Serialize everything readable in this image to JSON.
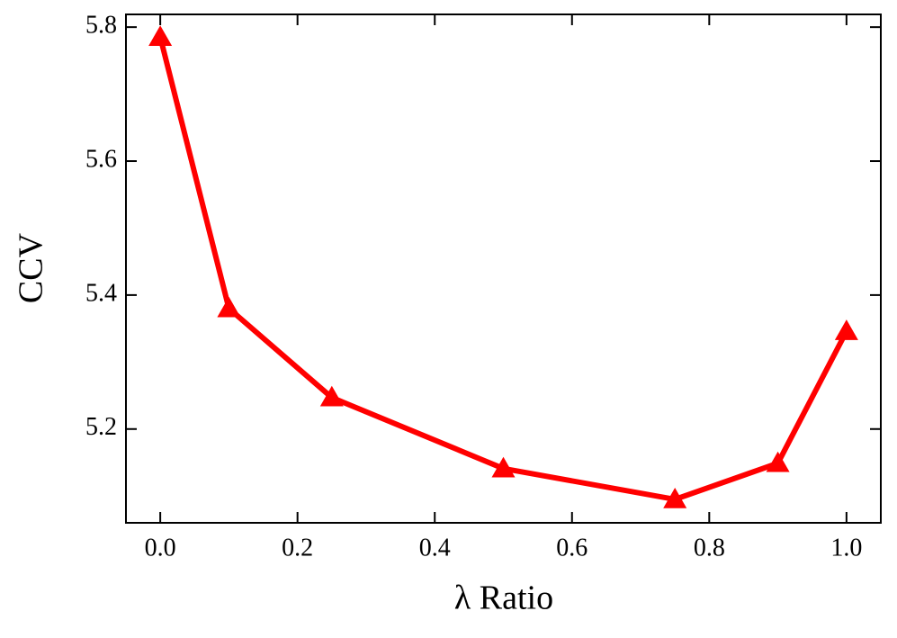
{
  "chart_data": {
    "type": "line",
    "x_label": "λ Ratio",
    "y_label": "CCV",
    "x": [
      0,
      0.1,
      0.25,
      0.5,
      0.75,
      0.9,
      1.0
    ],
    "series": [
      {
        "color": "#ff0000",
        "marker": "triangle",
        "values": [
          5.785,
          5.38,
          5.247,
          5.141,
          5.095,
          5.149,
          5.346
        ]
      }
    ],
    "xlim": [
      -0.05,
      1.05
    ],
    "xticks": [
      {
        "value": 0,
        "label": "0.0"
      },
      0.2,
      0.4,
      0.6,
      0.8,
      {
        "value": 1,
        "label": "1.0"
      }
    ],
    "ylim": [
      5.06,
      5.819
    ],
    "yticks": [
      5.2,
      5.4,
      5.6,
      5.8
    ]
  }
}
